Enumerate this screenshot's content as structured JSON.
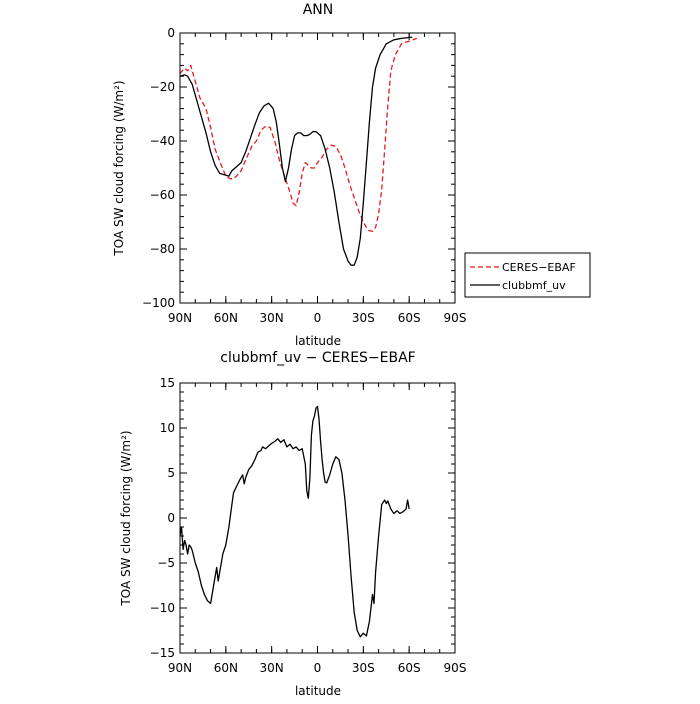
{
  "chart_data": [
    {
      "type": "line",
      "title": "ANN",
      "xlabel": "latitude",
      "ylabel": "TOA SW cloud forcing (W/m²)",
      "xlim": [
        90,
        -90
      ],
      "ylim": [
        -100,
        0
      ],
      "x_tick_labels": [
        "90N",
        "60N",
        "30N",
        "0",
        "30S",
        "60S",
        "90S"
      ],
      "y_tick_labels": [
        "0",
        "−20",
        "−40",
        "−60",
        "−80",
        "−100"
      ],
      "legend_position": "right",
      "series": [
        {
          "name": "CERES−EBAF",
          "color": "#e41a1c",
          "dash": true,
          "points": [
            [
              90,
              -15
            ],
            [
              87,
              -13
            ],
            [
              85,
              -14
            ],
            [
              83,
              -12
            ],
            [
              80,
              -18
            ],
            [
              77,
              -24
            ],
            [
              73,
              -28
            ],
            [
              70,
              -35
            ],
            [
              67,
              -43
            ],
            [
              63,
              -49
            ],
            [
              60,
              -53
            ],
            [
              57,
              -54
            ],
            [
              55,
              -54
            ],
            [
              53,
              -53
            ],
            [
              50,
              -51
            ],
            [
              47,
              -47
            ],
            [
              43,
              -42
            ],
            [
              40,
              -40
            ],
            [
              37,
              -36
            ],
            [
              34,
              -34.5
            ],
            [
              31,
              -35
            ],
            [
              28,
              -40
            ],
            [
              25,
              -47
            ],
            [
              21,
              -54
            ],
            [
              18,
              -59
            ],
            [
              16,
              -63
            ],
            [
              14,
              -64
            ],
            [
              12,
              -59
            ],
            [
              10,
              -52
            ],
            [
              8,
              -48
            ],
            [
              6,
              -49
            ],
            [
              4,
              -50
            ],
            [
              2,
              -50
            ],
            [
              0,
              -48
            ],
            [
              -3,
              -46
            ],
            [
              -6,
              -43
            ],
            [
              -9,
              -41.5
            ],
            [
              -12,
              -42
            ],
            [
              -15,
              -45
            ],
            [
              -18,
              -50
            ],
            [
              -21,
              -56
            ],
            [
              -24,
              -61
            ],
            [
              -27,
              -66
            ],
            [
              -30,
              -70
            ],
            [
              -33,
              -73
            ],
            [
              -36,
              -73.5
            ],
            [
              -38,
              -72
            ],
            [
              -40,
              -67
            ],
            [
              -42,
              -58
            ],
            [
              -44,
              -43
            ],
            [
              -46,
              -27
            ],
            [
              -48,
              -14
            ],
            [
              -51,
              -8
            ],
            [
              -55,
              -4
            ],
            [
              -60,
              -3
            ],
            [
              -65,
              -2
            ]
          ]
        },
        {
          "name": "clubbmf_uv",
          "color": "#000000",
          "dash": false,
          "points": [
            [
              90,
              -16
            ],
            [
              87,
              -15.5
            ],
            [
              85,
              -16
            ],
            [
              82,
              -19
            ],
            [
              79,
              -25
            ],
            [
              76,
              -31
            ],
            [
              73,
              -37
            ],
            [
              70,
              -44
            ],
            [
              67,
              -49
            ],
            [
              64,
              -52
            ],
            [
              61,
              -52.5
            ],
            [
              58,
              -53
            ],
            [
              56,
              -51
            ],
            [
              53,
              -49.5
            ],
            [
              50,
              -48
            ],
            [
              47,
              -44
            ],
            [
              44,
              -39
            ],
            [
              41,
              -34
            ],
            [
              38,
              -29.5
            ],
            [
              35,
              -27
            ],
            [
              32,
              -26
            ],
            [
              29,
              -28
            ],
            [
              27,
              -33
            ],
            [
              25,
              -41
            ],
            [
              23,
              -50
            ],
            [
              21,
              -55
            ],
            [
              19,
              -50
            ],
            [
              17,
              -43
            ],
            [
              15,
              -38
            ],
            [
              13,
              -37
            ],
            [
              11,
              -37
            ],
            [
              9,
              -38
            ],
            [
              7,
              -38
            ],
            [
              5,
              -37.5
            ],
            [
              3,
              -36.5
            ],
            [
              1,
              -36.5
            ],
            [
              -2,
              -38
            ],
            [
              -5,
              -43
            ],
            [
              -8,
              -50
            ],
            [
              -11,
              -59
            ],
            [
              -14,
              -70
            ],
            [
              -17,
              -80
            ],
            [
              -20,
              -84.5
            ],
            [
              -22,
              -86
            ],
            [
              -24,
              -86
            ],
            [
              -26,
              -83
            ],
            [
              -28,
              -76
            ],
            [
              -30,
              -63
            ],
            [
              -32,
              -48
            ],
            [
              -34,
              -33
            ],
            [
              -36,
              -20
            ],
            [
              -38,
              -13
            ],
            [
              -41,
              -8
            ],
            [
              -45,
              -4
            ],
            [
              -50,
              -2.5
            ],
            [
              -55,
              -2
            ],
            [
              -62,
              -1.5
            ]
          ]
        }
      ]
    },
    {
      "type": "line",
      "title": "clubbmf_uv − CERES−EBAF",
      "xlabel": "latitude",
      "ylabel": "TOA SW cloud forcing (W/m²)",
      "xlim": [
        90,
        -90
      ],
      "ylim": [
        -15,
        15
      ],
      "x_tick_labels": [
        "90N",
        "60N",
        "30N",
        "0",
        "30S",
        "60S",
        "90S"
      ],
      "y_tick_labels": [
        "15",
        "10",
        "5",
        "0",
        "−5",
        "−10",
        "−15"
      ],
      "series": [
        {
          "color": "#000000",
          "points": [
            [
              90,
              -2
            ],
            [
              89,
              -1
            ],
            [
              88,
              -3.5
            ],
            [
              87,
              -2.5
            ],
            [
              86,
              -3
            ],
            [
              85,
              -4
            ],
            [
              84,
              -3
            ],
            [
              83,
              -3.2
            ],
            [
              82,
              -3.6
            ],
            [
              80,
              -5
            ],
            [
              78,
              -6
            ],
            [
              76,
              -7.5
            ],
            [
              74,
              -8.5
            ],
            [
              72,
              -9.2
            ],
            [
              70,
              -9.5
            ],
            [
              68,
              -7.5
            ],
            [
              66,
              -5.5
            ],
            [
              65,
              -7
            ],
            [
              64,
              -6
            ],
            [
              63,
              -5
            ],
            [
              62,
              -4
            ],
            [
              60,
              -3
            ],
            [
              58,
              -1
            ],
            [
              56,
              1.5
            ],
            [
              55,
              2.8
            ],
            [
              53,
              3.5
            ],
            [
              51,
              4.2
            ],
            [
              49,
              4.8
            ],
            [
              48,
              3.8
            ],
            [
              47,
              4.5
            ],
            [
              45,
              5.4
            ],
            [
              43,
              5.8
            ],
            [
              41,
              6.5
            ],
            [
              39,
              7.3
            ],
            [
              37,
              7.5
            ],
            [
              36,
              7.9
            ],
            [
              34,
              7.7
            ],
            [
              32,
              8
            ],
            [
              30,
              8.3
            ],
            [
              28,
              8.5
            ],
            [
              26,
              8.8
            ],
            [
              24,
              8.4
            ],
            [
              22,
              8.7
            ],
            [
              20,
              7.9
            ],
            [
              18,
              8.2
            ],
            [
              16,
              7.7
            ],
            [
              14,
              7.9
            ],
            [
              12,
              7.5
            ],
            [
              10,
              7.7
            ],
            [
              8,
              6
            ],
            [
              7,
              3
            ],
            [
              6,
              2.2
            ],
            [
              5,
              4.5
            ],
            [
              4,
              9.2
            ],
            [
              3,
              10.8
            ],
            [
              2,
              11.3
            ],
            [
              1,
              12.2
            ],
            [
              0,
              12.4
            ],
            [
              -1,
              11
            ],
            [
              -2,
              8.5
            ],
            [
              -3,
              6.5
            ],
            [
              -4,
              5
            ],
            [
              -5,
              4
            ],
            [
              -6,
              3.9
            ],
            [
              -8,
              4.8
            ],
            [
              -10,
              6
            ],
            [
              -12,
              6.8
            ],
            [
              -14,
              6.5
            ],
            [
              -16,
              5
            ],
            [
              -18,
              2
            ],
            [
              -20,
              -2
            ],
            [
              -22,
              -6.5
            ],
            [
              -24,
              -10.5
            ],
            [
              -26,
              -12.5
            ],
            [
              -28,
              -13.2
            ],
            [
              -30,
              -12.8
            ],
            [
              -32,
              -13.1
            ],
            [
              -34,
              -11.5
            ],
            [
              -36,
              -8.5
            ],
            [
              -37,
              -9.5
            ],
            [
              -38,
              -6
            ],
            [
              -40,
              -2
            ],
            [
              -42,
              1.5
            ],
            [
              -44,
              2
            ],
            [
              -45,
              1.6
            ],
            [
              -46,
              1.9
            ],
            [
              -48,
              1
            ],
            [
              -50,
              0.5
            ],
            [
              -52,
              0.8
            ],
            [
              -54,
              0.5
            ],
            [
              -56,
              0.7
            ],
            [
              -58,
              1
            ],
            [
              -59,
              2
            ],
            [
              -60,
              1
            ]
          ]
        }
      ]
    }
  ]
}
